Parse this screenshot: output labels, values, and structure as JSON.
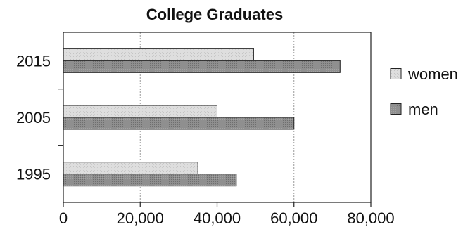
{
  "chart_data": {
    "type": "bar",
    "orientation": "horizontal",
    "title": "College Graduates",
    "xlabel": "",
    "ylabel": "",
    "categories": [
      "2015",
      "2005",
      "1995"
    ],
    "series": [
      {
        "name": "women",
        "values": [
          49500,
          40000,
          35000
        ],
        "color": "#dcdcdc"
      },
      {
        "name": "men",
        "values": [
          72000,
          60000,
          45000
        ],
        "color": "#8a8a8a"
      }
    ],
    "xlim": [
      0,
      80000
    ],
    "xticks": [
      0,
      20000,
      40000,
      60000,
      80000
    ],
    "xtick_labels": [
      "0",
      "20,000",
      "40,000",
      "60,000",
      "80,000"
    ],
    "grid": "vertical dotted",
    "legend_position": "right"
  }
}
